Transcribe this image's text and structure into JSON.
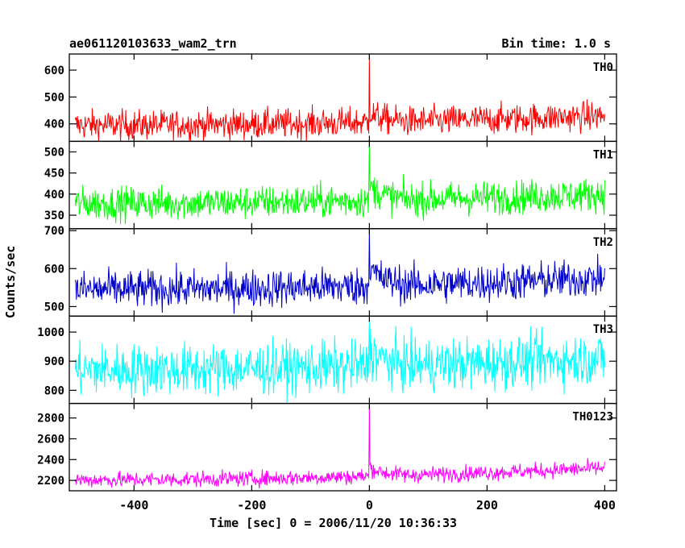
{
  "header": {
    "title": "ae061120103633_wam2_trn",
    "bin_time": "Bin time: 1.0 s"
  },
  "chart_data": {
    "type": "line",
    "xlabel": "Time [sec] 0 = 2006/11/20 10:36:33",
    "ylabel": "Counts/sec",
    "xlim": [
      -510,
      420
    ],
    "xticks": [
      -400,
      -200,
      0,
      200,
      400
    ],
    "x_start": -500,
    "x_end": 400,
    "series": [
      {
        "name": "TH0",
        "color": "#ff0000",
        "ylim": [
          335,
          660
        ],
        "yticks": [
          400,
          500,
          600
        ],
        "baseline_start": 395,
        "baseline_end": 430,
        "noise": 28,
        "burst_peak": 660,
        "burst_after": 440
      },
      {
        "name": "TH1",
        "color": "#00ff00",
        "ylim": [
          318,
          525
        ],
        "yticks": [
          350,
          400,
          450,
          500
        ],
        "baseline_start": 378,
        "baseline_end": 400,
        "noise": 20,
        "burst_peak": 525,
        "burst_after": 420
      },
      {
        "name": "TH2",
        "color": "#0000cc",
        "ylim": [
          475,
          705
        ],
        "yticks": [
          500,
          600,
          700
        ],
        "baseline_start": 545,
        "baseline_end": 575,
        "noise": 25,
        "burst_peak": 705,
        "burst_after": 600
      },
      {
        "name": "TH3",
        "color": "#00ffff",
        "ylim": [
          755,
          1055
        ],
        "yticks": [
          800,
          900,
          1000
        ],
        "baseline_start": 870,
        "baseline_end": 910,
        "noise": 45,
        "burst_peak": 1040,
        "burst_after": 940
      },
      {
        "name": "TH0123",
        "color": "#ff00ff",
        "ylim": [
          2100,
          2940
        ],
        "yticks": [
          2200,
          2400,
          2600,
          2800
        ],
        "baseline_start": 2205,
        "baseline_end": 2320,
        "noise": 38,
        "burst_peak": 2940,
        "burst_after": 2330
      }
    ]
  }
}
